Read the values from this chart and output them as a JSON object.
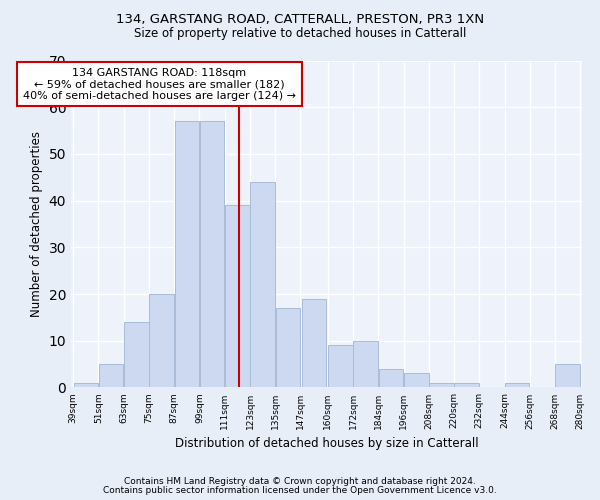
{
  "title1": "134, GARSTANG ROAD, CATTERALL, PRESTON, PR3 1XN",
  "title2": "Size of property relative to detached houses in Catterall",
  "xlabel": "Distribution of detached houses by size in Catterall",
  "ylabel": "Number of detached properties",
  "bar_color": "#ccd9f0",
  "bar_edge_color": "#aabbd8",
  "bins": [
    39,
    51,
    63,
    75,
    87,
    99,
    111,
    123,
    135,
    147,
    160,
    172,
    184,
    196,
    208,
    220,
    232,
    244,
    256,
    268,
    280
  ],
  "values": [
    1,
    5,
    14,
    20,
    57,
    57,
    39,
    44,
    17,
    19,
    9,
    10,
    4,
    3,
    1,
    1,
    0,
    1,
    0,
    5
  ],
  "tick_labels": [
    "39sqm",
    "51sqm",
    "63sqm",
    "75sqm",
    "87sqm",
    "99sqm",
    "111sqm",
    "123sqm",
    "135sqm",
    "147sqm",
    "160sqm",
    "172sqm",
    "184sqm",
    "196sqm",
    "208sqm",
    "220sqm",
    "232sqm",
    "244sqm",
    "256sqm",
    "268sqm",
    "280sqm"
  ],
  "property_size": 118,
  "vline_color": "#cc0000",
  "annotation_text": "134 GARSTANG ROAD: 118sqm\n← 59% of detached houses are smaller (182)\n40% of semi-detached houses are larger (124) →",
  "annotation_box_color": "#ffffff",
  "annotation_box_edge": "#cc0000",
  "ylim": [
    0,
    70
  ],
  "yticks": [
    0,
    10,
    20,
    30,
    40,
    50,
    60,
    70
  ],
  "footer1": "Contains HM Land Registry data © Crown copyright and database right 2024.",
  "footer2": "Contains public sector information licensed under the Open Government Licence v3.0.",
  "bg_color": "#e8eef8",
  "plot_bg_color": "#eef3fb"
}
